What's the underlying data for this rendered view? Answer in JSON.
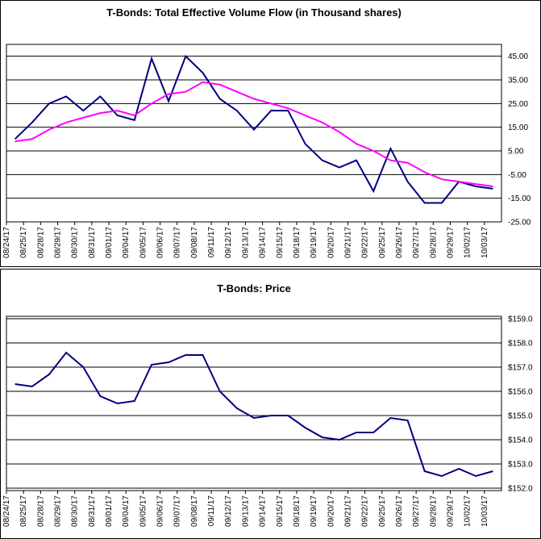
{
  "chart_data": [
    {
      "type": "line",
      "title": "T-Bonds: Total Effective Volume Flow (in Thousand shares)",
      "categories": [
        "08/24/17",
        "08/25/17",
        "08/28/17",
        "08/29/17",
        "08/30/17",
        "08/31/17",
        "09/01/17",
        "09/04/17",
        "09/05/17",
        "09/06/17",
        "09/07/17",
        "09/08/17",
        "09/11/17",
        "09/12/17",
        "09/13/17",
        "09/14/17",
        "09/15/17",
        "09/18/17",
        "09/19/17",
        "09/20/17",
        "09/21/17",
        "09/22/17",
        "09/25/17",
        "09/26/17",
        "09/27/17",
        "09/28/17",
        "09/29/17",
        "10/02/17",
        "10/03/17"
      ],
      "series": [
        {
          "color": "#000080",
          "values": [
            10,
            17,
            25,
            28,
            22,
            28,
            20,
            18,
            44,
            26,
            45,
            38,
            27,
            22,
            14,
            22,
            22,
            8,
            1,
            -2,
            1,
            -12,
            6,
            -8,
            -17,
            -17,
            -8,
            -10,
            -11
          ]
        },
        {
          "color": "#ff00ff",
          "values": [
            9,
            10,
            14,
            17,
            19,
            21,
            22,
            20,
            25,
            29,
            30,
            34,
            33,
            30,
            27,
            25,
            23,
            20,
            17,
            13,
            8,
            5,
            1,
            0,
            -4,
            -7,
            -8,
            -9,
            -10
          ]
        }
      ],
      "ylim": [
        -25,
        50
      ],
      "yticks": [
        {
          "value": 45,
          "label": "45.00"
        },
        {
          "value": 35,
          "label": "35.00"
        },
        {
          "value": 25,
          "label": "25.00"
        },
        {
          "value": 15,
          "label": "15.00"
        },
        {
          "value": 5,
          "label": "5.00"
        },
        {
          "value": -5,
          "label": "-5.00"
        },
        {
          "value": -15,
          "label": "-15.00"
        },
        {
          "value": -25,
          "label": "-25.00"
        }
      ],
      "grid": true
    },
    {
      "type": "line",
      "title": "T-Bonds: Price",
      "categories": [
        "08/24/17",
        "08/25/17",
        "08/28/17",
        "08/29/17",
        "08/30/17",
        "08/31/17",
        "09/01/17",
        "09/04/17",
        "09/05/17",
        "09/06/17",
        "09/07/17",
        "09/08/17",
        "09/11/17",
        "09/12/17",
        "09/13/17",
        "09/14/17",
        "09/15/17",
        "09/18/17",
        "09/19/17",
        "09/20/17",
        "09/21/17",
        "09/22/17",
        "09/25/17",
        "09/26/17",
        "09/27/17",
        "09/28/17",
        "09/29/17",
        "10/02/17",
        "10/03/17"
      ],
      "series": [
        {
          "color": "#000080",
          "values": [
            156.3,
            156.2,
            156.7,
            157.6,
            157.0,
            155.8,
            155.5,
            155.6,
            157.1,
            157.2,
            157.5,
            157.5,
            156.0,
            155.3,
            154.9,
            155.0,
            155.0,
            154.5,
            154.1,
            154.0,
            154.3,
            154.3,
            154.9,
            154.8,
            152.7,
            152.5,
            152.8,
            152.5,
            152.7
          ]
        }
      ],
      "ylim": [
        151.9,
        159.1
      ],
      "yticks": [
        {
          "value": 159,
          "label": "$159.0"
        },
        {
          "value": 158,
          "label": "$158.0"
        },
        {
          "value": 157,
          "label": "$157.0"
        },
        {
          "value": 156,
          "label": "$156.0"
        },
        {
          "value": 155,
          "label": "$155.0"
        },
        {
          "value": 154,
          "label": "$154.0"
        },
        {
          "value": 153,
          "label": "$153.0"
        },
        {
          "value": 152,
          "label": "$152.0"
        }
      ],
      "grid": true
    }
  ]
}
